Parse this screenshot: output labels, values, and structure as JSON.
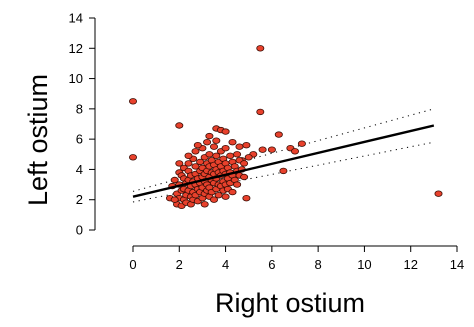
{
  "chart_data": {
    "type": "scatter",
    "xlabel": "Right ostium",
    "ylabel": "Left ostium",
    "xlim": [
      0,
      14
    ],
    "ylim": [
      0,
      14
    ],
    "xticks": [
      0,
      2,
      4,
      6,
      8,
      10,
      12,
      14
    ],
    "yticks": [
      0,
      2,
      4,
      6,
      8,
      10,
      12,
      14
    ],
    "xtick_labels": [
      "0",
      "2",
      "4",
      "6",
      "8",
      "10",
      "12",
      "14"
    ],
    "ytick_labels": [
      "0",
      "2",
      "4",
      "6",
      "8",
      "10",
      "12",
      "14"
    ],
    "grid": false,
    "point_color": "#e8412c",
    "point_edge_color": "#3a0d05",
    "fit_line": {
      "x": [
        0,
        13
      ],
      "y": [
        2.2,
        6.9
      ],
      "color": "#000000"
    },
    "confidence_band": {
      "upper": {
        "x": [
          0,
          13
        ],
        "y": [
          2.55,
          8.0
        ]
      },
      "lower": {
        "x": [
          0,
          13
        ],
        "y": [
          1.85,
          5.8
        ]
      }
    },
    "points": [
      [
        0.0,
        8.5
      ],
      [
        0.0,
        4.8
      ],
      [
        13.2,
        2.4
      ],
      [
        5.5,
        12.0
      ],
      [
        5.5,
        7.8
      ],
      [
        2.0,
        6.9
      ],
      [
        5.6,
        5.3
      ],
      [
        6.0,
        5.3
      ],
      [
        6.3,
        6.3
      ],
      [
        6.5,
        3.9
      ],
      [
        6.8,
        5.4
      ],
      [
        7.0,
        5.2
      ],
      [
        7.3,
        5.7
      ],
      [
        4.9,
        2.1
      ],
      [
        3.6,
        6.7
      ],
      [
        3.8,
        6.6
      ],
      [
        4.0,
        6.5
      ],
      [
        3.3,
        6.2
      ],
      [
        4.3,
        5.8
      ],
      [
        4.6,
        5.5
      ],
      [
        4.9,
        5.6
      ],
      [
        5.2,
        5.0
      ],
      [
        4.7,
        4.6
      ],
      [
        5.0,
        4.8
      ],
      [
        4.5,
        5.0
      ],
      [
        1.6,
        2.1
      ],
      [
        1.7,
        2.9
      ],
      [
        1.8,
        3.3
      ],
      [
        1.9,
        2.4
      ],
      [
        1.9,
        1.7
      ],
      [
        2.0,
        3.8
      ],
      [
        2.0,
        3.0
      ],
      [
        2.0,
        2.1
      ],
      [
        2.1,
        3.6
      ],
      [
        2.1,
        2.6
      ],
      [
        2.1,
        1.6
      ],
      [
        2.2,
        4.1
      ],
      [
        2.2,
        3.4
      ],
      [
        2.2,
        2.7
      ],
      [
        2.2,
        2.0
      ],
      [
        2.3,
        3.1
      ],
      [
        2.3,
        2.3
      ],
      [
        2.3,
        1.8
      ],
      [
        2.4,
        4.4
      ],
      [
        2.4,
        3.9
      ],
      [
        2.4,
        3.3
      ],
      [
        2.4,
        2.6
      ],
      [
        2.5,
        3.6
      ],
      [
        2.5,
        2.9
      ],
      [
        2.5,
        2.2
      ],
      [
        2.5,
        1.7
      ],
      [
        2.6,
        4.7
      ],
      [
        2.6,
        3.2
      ],
      [
        2.6,
        2.5
      ],
      [
        2.6,
        2.0
      ],
      [
        2.7,
        5.2
      ],
      [
        2.7,
        4.2
      ],
      [
        2.7,
        3.7
      ],
      [
        2.7,
        3.0
      ],
      [
        2.7,
        2.3
      ],
      [
        2.8,
        3.4
      ],
      [
        2.8,
        2.7
      ],
      [
        2.8,
        1.9
      ],
      [
        2.9,
        4.5
      ],
      [
        2.9,
        3.9
      ],
      [
        2.9,
        3.1
      ],
      [
        2.9,
        2.5
      ],
      [
        3.0,
        5.4
      ],
      [
        3.0,
        4.1
      ],
      [
        3.0,
        3.5
      ],
      [
        3.0,
        2.8
      ],
      [
        3.0,
        2.1
      ],
      [
        3.1,
        4.8
      ],
      [
        3.1,
        3.7
      ],
      [
        3.1,
        3.2
      ],
      [
        3.1,
        2.4
      ],
      [
        3.1,
        1.7
      ],
      [
        3.2,
        4.4
      ],
      [
        3.2,
        3.9
      ],
      [
        3.2,
        3.0
      ],
      [
        3.2,
        2.6
      ],
      [
        3.3,
        5.0
      ],
      [
        3.3,
        4.2
      ],
      [
        3.3,
        3.5
      ],
      [
        3.3,
        2.8
      ],
      [
        3.3,
        2.2
      ],
      [
        3.4,
        4.6
      ],
      [
        3.4,
        3.8
      ],
      [
        3.4,
        3.3
      ],
      [
        3.4,
        2.5
      ],
      [
        3.5,
        5.5
      ],
      [
        3.5,
        4.3
      ],
      [
        3.5,
        3.7
      ],
      [
        3.5,
        3.1
      ],
      [
        3.5,
        2.0
      ],
      [
        3.6,
        4.9
      ],
      [
        3.6,
        4.0
      ],
      [
        3.6,
        3.4
      ],
      [
        3.6,
        2.7
      ],
      [
        3.7,
        4.5
      ],
      [
        3.7,
        3.8
      ],
      [
        3.7,
        3.0
      ],
      [
        3.7,
        2.3
      ],
      [
        3.8,
        5.2
      ],
      [
        3.8,
        4.2
      ],
      [
        3.8,
        3.6
      ],
      [
        3.8,
        2.9
      ],
      [
        3.9,
        4.7
      ],
      [
        3.9,
        3.9
      ],
      [
        3.9,
        3.2
      ],
      [
        3.9,
        2.6
      ],
      [
        4.0,
        5.4
      ],
      [
        4.0,
        4.4
      ],
      [
        4.0,
        3.7
      ],
      [
        4.0,
        3.0
      ],
      [
        4.0,
        2.2
      ],
      [
        4.1,
        4.1
      ],
      [
        4.1,
        3.4
      ],
      [
        4.1,
        2.7
      ],
      [
        4.2,
        4.9
      ],
      [
        4.2,
        3.8
      ],
      [
        4.2,
        3.1
      ],
      [
        4.3,
        4.5
      ],
      [
        4.3,
        3.6
      ],
      [
        4.3,
        2.5
      ],
      [
        4.4,
        4.2
      ],
      [
        4.4,
        3.3
      ],
      [
        4.5,
        3.9
      ],
      [
        4.5,
        3.0
      ],
      [
        4.6,
        4.6
      ],
      [
        4.6,
        3.6
      ],
      [
        4.7,
        4.0
      ],
      [
        4.8,
        4.4
      ],
      [
        4.8,
        3.5
      ],
      [
        2.4,
        4.9
      ],
      [
        2.8,
        5.6
      ],
      [
        3.2,
        5.8
      ],
      [
        1.8,
        2.0
      ],
      [
        2.0,
        4.4
      ],
      [
        3.6,
        5.9
      ]
    ]
  }
}
